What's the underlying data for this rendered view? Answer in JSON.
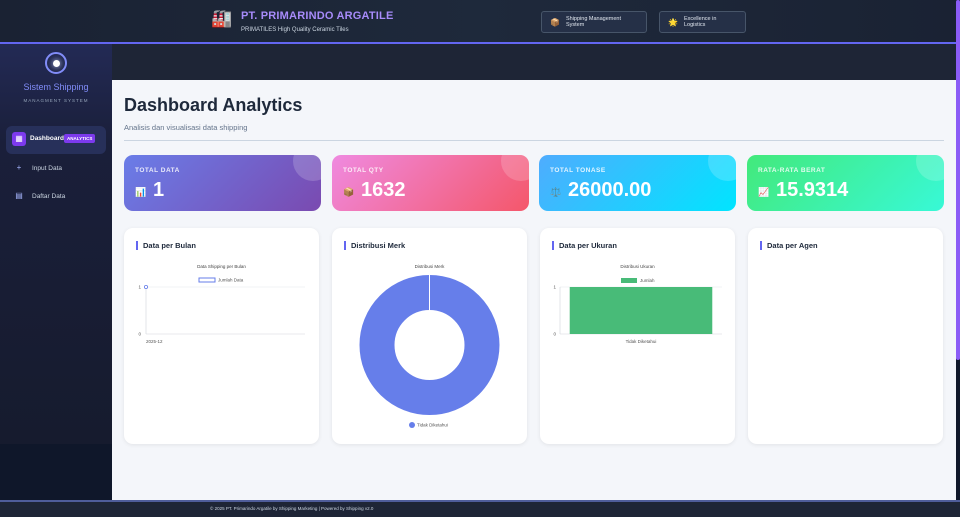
{
  "header": {
    "company": "PT. PRIMARINDO ARGATILE",
    "tagline": "PRIMATILES High Quality Ceramic Tiles",
    "badge1": "Shipping Management System",
    "badge2": "Excellence in Logistics",
    "brand_icon": "factory-icon"
  },
  "sidebar": {
    "title": "Sistem Shipping",
    "subtitle": "MANAGMENT SYSTEM",
    "items": [
      {
        "label": "Dashboard",
        "badge": "ANALYTICS",
        "icon": "grid-icon",
        "active": true
      },
      {
        "label": "Input Data",
        "icon": "plus-icon"
      },
      {
        "label": "Daftar Data",
        "icon": "list-icon"
      }
    ]
  },
  "main": {
    "title": "Dashboard Analytics",
    "subtitle": "Analisis dan visualisasi data shipping",
    "stats": [
      {
        "label": "TOTAL DATA",
        "value": "1",
        "icon": "📊"
      },
      {
        "label": "TOTAL QTY",
        "value": "1632",
        "icon": "📦"
      },
      {
        "label": "TOTAL TONASE",
        "value": "26000.00",
        "icon": "⚖️"
      },
      {
        "label": "RATA-RATA BERAT",
        "value": "15.9314",
        "icon": "📈"
      }
    ],
    "cards": [
      "Data per Bulan",
      "Distribusi Merk",
      "Data per Ukuran",
      "Data per Agen"
    ]
  },
  "chart_data": [
    {
      "type": "line",
      "title": "Data Shipping per Bulan",
      "x": [
        "2025-12"
      ],
      "series": [
        {
          "name": "Jumlah Data",
          "values": [
            1
          ]
        }
      ],
      "ylim": [
        0,
        1
      ],
      "yticks": [
        "0",
        "1"
      ]
    },
    {
      "type": "pie",
      "title": "Distribusi Merk",
      "categories": [
        "Tidak Diketahui"
      ],
      "values": [
        1
      ]
    },
    {
      "type": "bar",
      "title": "Distribusi Ukuran",
      "categories": [
        "Tidak Diketahui"
      ],
      "series": [
        {
          "name": "Jumlah",
          "values": [
            1
          ]
        }
      ],
      "ylim": [
        0,
        1
      ],
      "yticks": [
        "0",
        "1"
      ]
    }
  ],
  "colors": {
    "accent": "#6366f1",
    "line_series": "#667eea",
    "pie": "#667eea",
    "bar": "#48bb78"
  },
  "footer": {
    "text": "© 2025 PT. Primarindo Argatile by Shipping Marketing | Powered by Shipping v2.0"
  }
}
